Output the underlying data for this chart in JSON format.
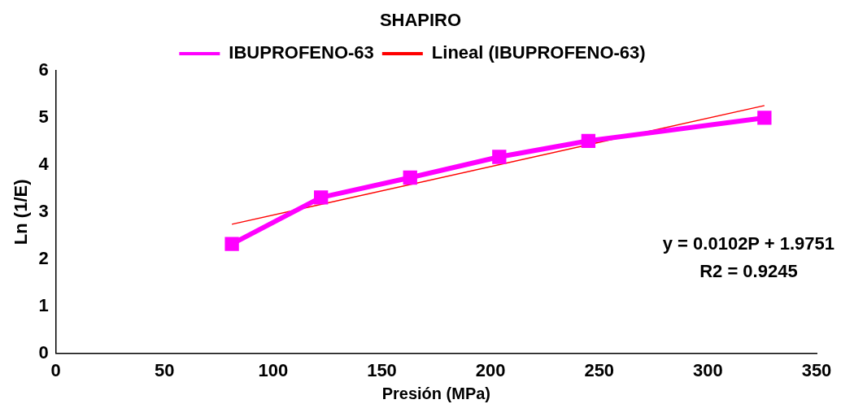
{
  "chart_data": {
    "type": "line",
    "title": "SHAPIRO",
    "xlabel": "Presión (MPa)",
    "ylabel": "Ln (1/E)",
    "xlim": [
      0,
      350
    ],
    "xticks": [
      0,
      50,
      100,
      150,
      200,
      250,
      300,
      350
    ],
    "ylim": [
      0,
      6
    ],
    "yticks": [
      0,
      1,
      2,
      3,
      4,
      5,
      6
    ],
    "grid": false,
    "legend": "top",
    "marker": "square",
    "series": [
      {
        "name": "IBUPROFENO-63",
        "color": "#ff00ff",
        "x": [
          81,
          122,
          163,
          204,
          245,
          326
        ],
        "values": [
          2.32,
          3.31,
          3.73,
          4.17,
          4.51,
          5.0
        ]
      },
      {
        "name": "Lineal (IBUPROFENO-63)",
        "color": "#ff0000",
        "marker": "none",
        "x": [
          81,
          326
        ],
        "values": [
          2.74,
          5.26
        ]
      }
    ],
    "annotations": [
      "y = 0.0102P + 1.9751",
      "R2 = 0.9245"
    ]
  }
}
